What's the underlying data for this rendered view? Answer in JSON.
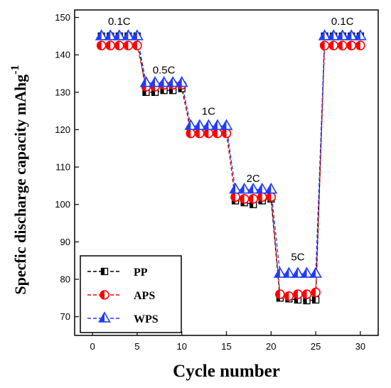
{
  "chart_data": {
    "type": "line",
    "xlabel": "Cycle number",
    "ylabel": "Specfic discharge capacity mAhg",
    "ylabel_superscript": "-1",
    "xlim": [
      -2,
      32
    ],
    "ylim": [
      65,
      152
    ],
    "xticks": [
      0,
      5,
      10,
      15,
      20,
      25,
      30
    ],
    "yticks": [
      70,
      80,
      90,
      100,
      110,
      120,
      130,
      140,
      150
    ],
    "legend_position": "bottom-left",
    "annotations": [
      {
        "text": "0.1C",
        "x": 3,
        "y": 148
      },
      {
        "text": "0.5C",
        "x": 8,
        "y": 135
      },
      {
        "text": "1C",
        "x": 13,
        "y": 124
      },
      {
        "text": "2C",
        "x": 18,
        "y": 106
      },
      {
        "text": "5C",
        "x": 23,
        "y": 85
      },
      {
        "text": "0.1C",
        "x": 28,
        "y": 148
      }
    ],
    "series": [
      {
        "name": "PP",
        "marker": "square-half",
        "color": "#000000",
        "x": [
          1,
          2,
          3,
          4,
          5,
          6,
          7,
          8,
          9,
          10,
          11,
          12,
          13,
          14,
          15,
          16,
          17,
          18,
          19,
          20,
          21,
          22,
          23,
          24,
          25,
          26,
          27,
          28,
          29,
          30
        ],
        "y": [
          145,
          145,
          145,
          145,
          145,
          130,
          130,
          130.5,
          130.5,
          131,
          120,
          120,
          120,
          120,
          120,
          101,
          100.5,
          100,
          101,
          101.5,
          75,
          74.8,
          74.5,
          74.3,
          74.5,
          145,
          145,
          145,
          145,
          145
        ]
      },
      {
        "name": "APS",
        "marker": "circle-half",
        "color": "#ff0000",
        "x": [
          1,
          2,
          3,
          4,
          5,
          6,
          7,
          8,
          9,
          10,
          11,
          12,
          13,
          14,
          15,
          16,
          17,
          18,
          19,
          20,
          21,
          22,
          23,
          24,
          25,
          26,
          27,
          28,
          29,
          30
        ],
        "y": [
          142.5,
          142.5,
          142.5,
          142.5,
          142.5,
          131.5,
          131.5,
          132,
          132,
          132,
          119,
          119,
          119,
          119,
          119,
          102,
          101.5,
          101.5,
          102,
          102,
          76,
          75.5,
          76,
          76,
          76.5,
          142.5,
          142.5,
          142.5,
          142.5,
          142.5
        ]
      },
      {
        "name": "WPS",
        "marker": "triangle",
        "color": "#1f3cff",
        "x": [
          1,
          2,
          3,
          4,
          5,
          6,
          7,
          8,
          9,
          10,
          11,
          12,
          13,
          14,
          15,
          16,
          17,
          18,
          19,
          20,
          21,
          22,
          23,
          24,
          25,
          26,
          27,
          28,
          29,
          30
        ],
        "y": [
          145,
          145,
          145,
          145,
          145,
          132.5,
          132.5,
          132.5,
          132.5,
          132.5,
          121,
          121,
          121,
          121,
          121,
          104,
          104,
          104,
          104,
          104,
          81.5,
          81.5,
          81.5,
          81.5,
          81.5,
          145,
          145,
          145,
          145,
          145
        ]
      }
    ]
  }
}
